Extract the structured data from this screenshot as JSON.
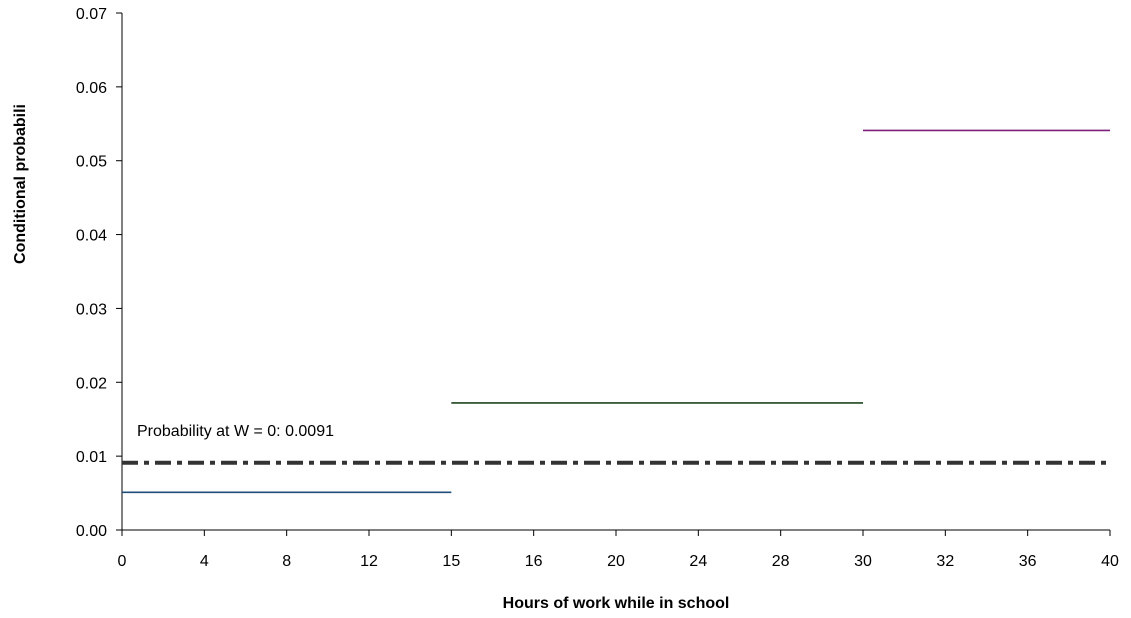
{
  "chart_data": {
    "type": "line",
    "title": "",
    "xlabel": "Hours of work while in school",
    "ylabel": "Conditional probabili",
    "ylim": [
      0,
      0.07
    ],
    "y_ticks": [
      "0.00",
      "0.01",
      "0.02",
      "0.03",
      "0.04",
      "0.05",
      "0.06",
      "0.07"
    ],
    "x_tick_labels": [
      "0",
      "4",
      "8",
      "12",
      "15",
      "16",
      "20",
      "24",
      "28",
      "30",
      "32",
      "36",
      "40"
    ],
    "x_tick_values": [
      0,
      4,
      8,
      12,
      15,
      16,
      20,
      24,
      28,
      30,
      32,
      36,
      40
    ],
    "grid": false,
    "legend": "none",
    "segments": [
      {
        "x_start": 0,
        "x_end": 15,
        "y": 0.0051,
        "color": "#1f4e79"
      },
      {
        "x_start": 15,
        "x_end": 30,
        "y": 0.0172,
        "color": "#1e4620"
      },
      {
        "x_start": 30,
        "x_end": 40,
        "y": 0.0541,
        "color": "#7f1f7f"
      }
    ],
    "reference_line": {
      "y": 0.0091,
      "style": "dash-dot",
      "color": "#333333"
    },
    "annotation": "Probability at W = 0: 0.0091"
  }
}
